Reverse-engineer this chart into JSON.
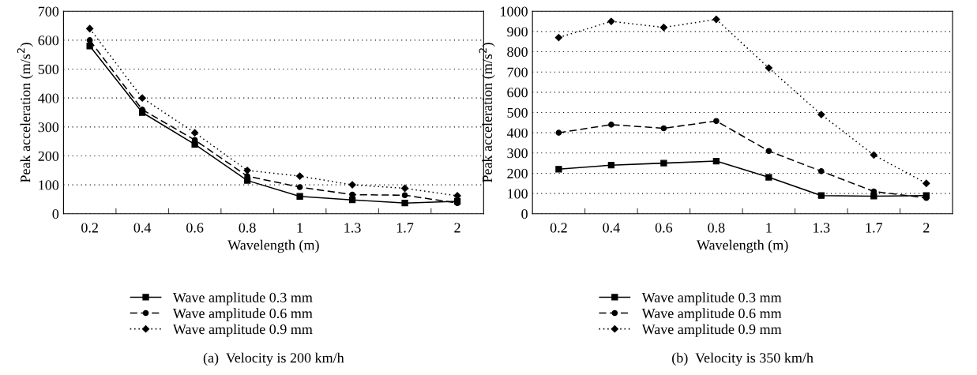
{
  "chart_data": [
    {
      "type": "line",
      "xlabel": "Wavelength (m)",
      "ylabel": "Peak acceleration (m/s$^{2}$)",
      "categories": [
        "0.2",
        "0.4",
        "0.6",
        "0.8",
        "1",
        "1.3",
        "1.7",
        "2"
      ],
      "ylim": [
        0,
        700
      ],
      "yticks": [
        0,
        100,
        200,
        300,
        400,
        500,
        600,
        700
      ],
      "grid": "y",
      "legend": "bottom",
      "annotations": [
        "(a)  Velocity is 200 km/h"
      ],
      "series": [
        {
          "name": "Wave amplitude 0.3 mm",
          "color": "#000000",
          "marker": "square",
          "line_style": "solid",
          "values": [
            580,
            350,
            240,
            115,
            60,
            48,
            37,
            43
          ]
        },
        {
          "name": "Wave amplitude 0.6 mm",
          "color": "#000000",
          "marker": "circle",
          "line_style": "dashed",
          "values": [
            600,
            360,
            255,
            130,
            92,
            66,
            64,
            37
          ]
        },
        {
          "name": "Wave amplitude 0.9 mm",
          "color": "#000000",
          "marker": "diamond",
          "line_style": "dotted",
          "values": [
            640,
            400,
            280,
            150,
            130,
            100,
            88,
            62
          ]
        }
      ]
    },
    {
      "type": "line",
      "xlabel": "Wavelength (m)",
      "ylabel": "Peak acceleration (m/s$^{2}$)",
      "categories": [
        "0.2",
        "0.4",
        "0.6",
        "0.8",
        "1",
        "1.3",
        "1.7",
        "2"
      ],
      "ylim": [
        0,
        1000
      ],
      "yticks": [
        0,
        100,
        200,
        300,
        400,
        500,
        600,
        700,
        800,
        900,
        1000
      ],
      "grid": "y",
      "legend": "bottom",
      "annotations": [
        "(b)  Velocity is 350 km/h"
      ],
      "series": [
        {
          "name": "Wave amplitude 0.3 mm",
          "color": "#000000",
          "marker": "square",
          "line_style": "solid",
          "values": [
            220,
            240,
            250,
            260,
            180,
            90,
            87,
            90
          ]
        },
        {
          "name": "Wave amplitude 0.6 mm",
          "color": "#000000",
          "marker": "circle",
          "line_style": "dashed",
          "values": [
            400,
            440,
            422,
            458,
            310,
            210,
            110,
            78
          ]
        },
        {
          "name": "Wave amplitude 0.9 mm",
          "color": "#000000",
          "marker": "diamond",
          "line_style": "dotted",
          "values": [
            870,
            950,
            920,
            960,
            720,
            490,
            290,
            150
          ]
        }
      ]
    }
  ]
}
